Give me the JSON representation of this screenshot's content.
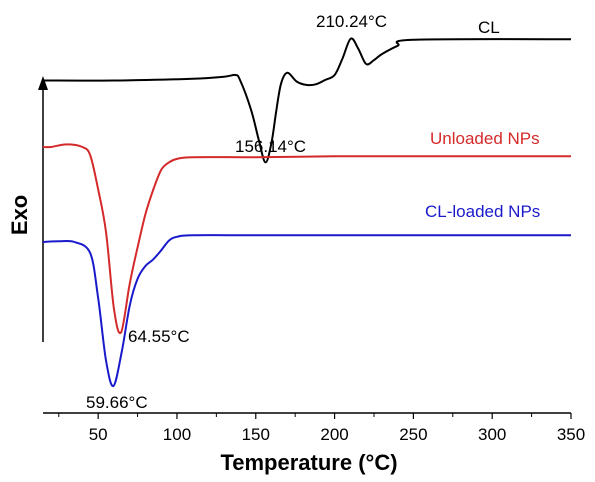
{
  "chart_data": {
    "type": "line",
    "title": "",
    "xlabel": "Temperature (°C)",
    "ylabel": "Exo",
    "xlim": [
      15,
      350
    ],
    "xticks": [
      50,
      100,
      150,
      200,
      250,
      300,
      350
    ],
    "grid": false,
    "y_units": "relative heat flow (curves offset vertically, no numeric scale)",
    "series": [
      {
        "name": "CL",
        "color": "#000000",
        "points": [
          [
            15,
            0.1
          ],
          [
            60,
            0.1
          ],
          [
            110,
            0.07
          ],
          [
            130,
            0.03
          ],
          [
            137,
            0.0
          ],
          [
            140,
            0.09
          ],
          [
            147,
            0.63
          ],
          [
            152,
            1.19
          ],
          [
            156.14,
            1.59
          ],
          [
            160,
            1.23
          ],
          [
            163,
            0.65
          ],
          [
            166,
            0.16
          ],
          [
            170,
            -0.04
          ],
          [
            176,
            0.12
          ],
          [
            182,
            0.18
          ],
          [
            188,
            0.17
          ],
          [
            194,
            0.09
          ],
          [
            200,
            0.0
          ],
          [
            205,
            -0.3
          ],
          [
            210.24,
            -0.66
          ],
          [
            215,
            -0.48
          ],
          [
            220,
            -0.2
          ],
          [
            225,
            -0.27
          ],
          [
            230,
            -0.38
          ],
          [
            240,
            -0.53
          ],
          [
            250,
            -0.64
          ],
          [
            350,
            -0.65
          ]
        ]
      },
      {
        "name": "Unloaded NPs",
        "color": "#d42a2a",
        "points": [
          [
            15,
            0.0
          ],
          [
            20,
            0.0
          ],
          [
            30,
            -0.03
          ],
          [
            40,
            0.0
          ],
          [
            45,
            0.1
          ],
          [
            50,
            0.5
          ],
          [
            55,
            1.0
          ],
          [
            60,
            1.9
          ],
          [
            64.55,
            2.18
          ],
          [
            70,
            1.61
          ],
          [
            75,
            1.18
          ],
          [
            80,
            0.79
          ],
          [
            85,
            0.5
          ],
          [
            90,
            0.27
          ],
          [
            95,
            0.18
          ],
          [
            100,
            0.14
          ],
          [
            110,
            0.12
          ],
          [
            150,
            0.12
          ],
          [
            200,
            0.11
          ],
          [
            250,
            0.11
          ],
          [
            350,
            0.11
          ]
        ]
      },
      {
        "name": "CL-loaded NPs",
        "color": "#1a1acc",
        "points": [
          [
            15,
            0.0
          ],
          [
            25,
            -0.01
          ],
          [
            35,
            0.0
          ],
          [
            45,
            0.15
          ],
          [
            50,
            0.75
          ],
          [
            55,
            1.58
          ],
          [
            59.66,
            1.92
          ],
          [
            65,
            1.46
          ],
          [
            70,
            0.85
          ],
          [
            75,
            0.49
          ],
          [
            80,
            0.32
          ],
          [
            85,
            0.23
          ],
          [
            90,
            0.11
          ],
          [
            95,
            -0.02
          ],
          [
            100,
            -0.07
          ],
          [
            110,
            -0.09
          ],
          [
            150,
            -0.09
          ],
          [
            200,
            -0.09
          ],
          [
            250,
            -0.09
          ],
          [
            350,
            -0.09
          ]
        ]
      }
    ],
    "annotations": [
      {
        "text": "210.24°C"
      },
      {
        "text": "156.14°C"
      },
      {
        "text": "64.55°C"
      },
      {
        "text": "59.66°C"
      }
    ]
  }
}
